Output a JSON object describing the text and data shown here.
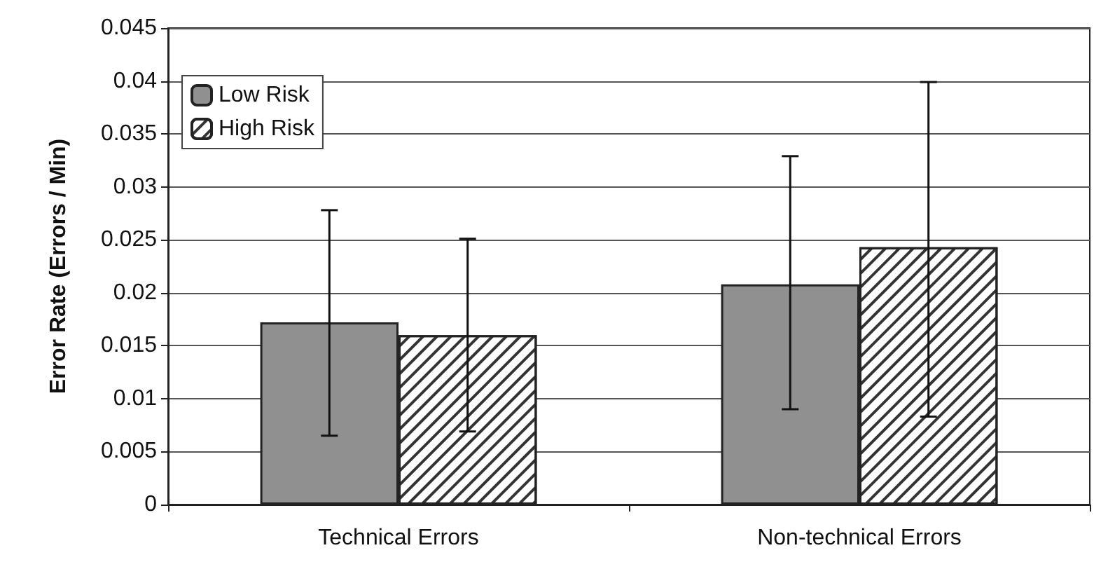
{
  "chart_data": {
    "type": "bar",
    "ylabel": "Error Rate (Errors / Min)",
    "categories": [
      "Technical Errors",
      "Non-technical Errors"
    ],
    "series": [
      {
        "name": "Low Risk",
        "color": "#909090",
        "values": [
          0.0172,
          0.0208
        ],
        "errors": [
          [
            0.0065,
            0.0278
          ],
          [
            0.009,
            0.0329
          ]
        ]
      },
      {
        "name": "High Risk",
        "color": "#ffffff",
        "values": [
          0.016,
          0.0243
        ],
        "errors": [
          [
            0.0069,
            0.0251
          ],
          [
            0.0083,
            0.0399
          ]
        ]
      }
    ],
    "ylim": [
      0,
      0.045
    ],
    "yticks": [
      0,
      0.005,
      0.01,
      0.015,
      0.02,
      0.025,
      0.03,
      0.035,
      0.04,
      0.045
    ],
    "grid": "y",
    "legend": "top left"
  }
}
